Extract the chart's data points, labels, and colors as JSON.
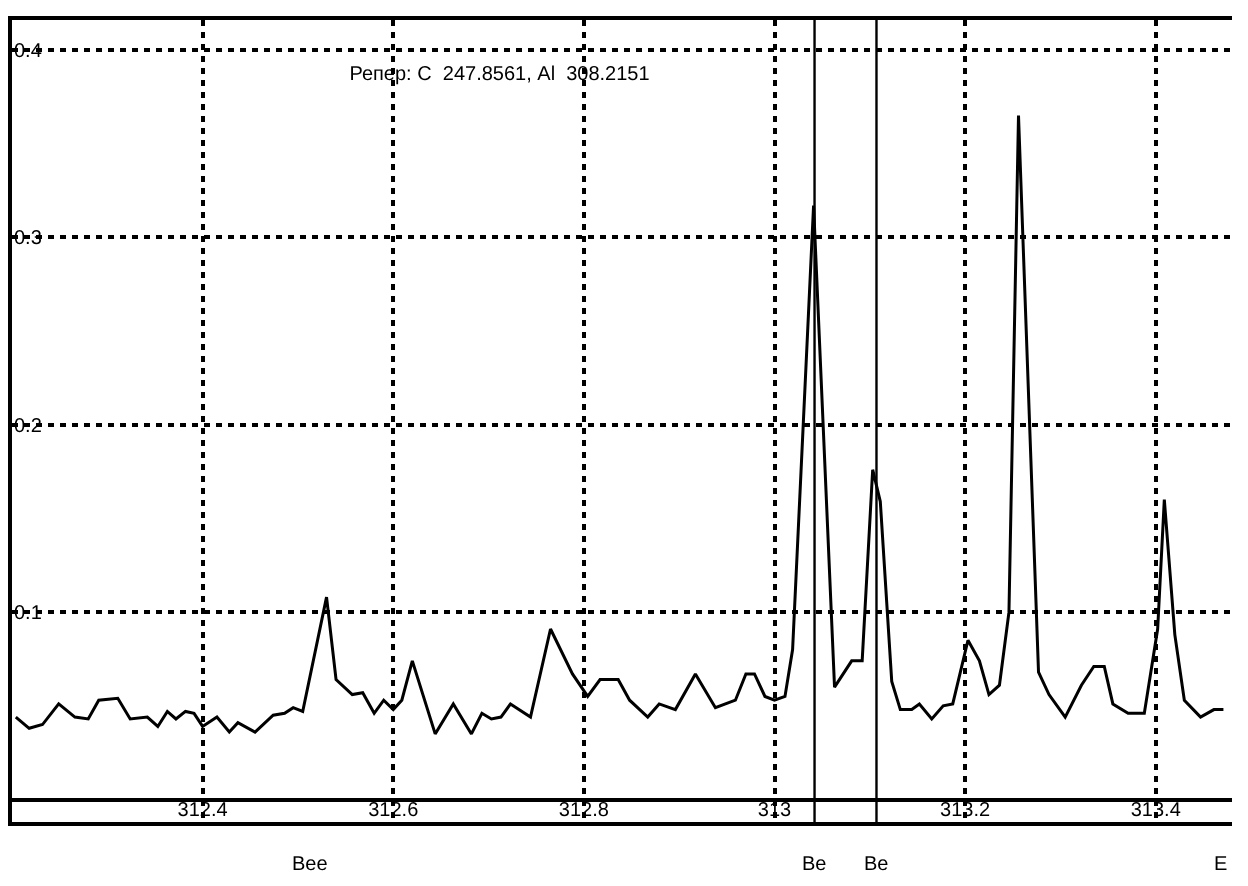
{
  "chart_data": {
    "type": "line",
    "title": "Репер: С  247.8561, Al  308.2151",
    "x": [
      312.204,
      312.218,
      312.232,
      312.249,
      312.266,
      312.28,
      312.291,
      312.311,
      312.324,
      312.342,
      312.353,
      312.363,
      312.372,
      312.382,
      312.391,
      312.4,
      312.415,
      312.428,
      312.437,
      312.455,
      312.474,
      312.486,
      312.495,
      312.505,
      312.53,
      312.54,
      312.557,
      312.568,
      312.58,
      312.59,
      312.6,
      312.609,
      312.62,
      312.644,
      312.663,
      312.682,
      312.693,
      312.703,
      312.713,
      312.723,
      312.744,
      312.765,
      312.788,
      312.804,
      312.817,
      312.836,
      312.848,
      312.867,
      312.879,
      312.896,
      312.917,
      312.938,
      312.959,
      312.97,
      312.979,
      312.99,
      313.0,
      313.011,
      313.019,
      313.041,
      313.063,
      313.081,
      313.092,
      313.103,
      313.111,
      313.123,
      313.132,
      313.144,
      313.152,
      313.165,
      313.177,
      313.187,
      313.203,
      313.215,
      313.225,
      313.236,
      313.246,
      313.256,
      313.277,
      313.288,
      313.305,
      313.322,
      313.335,
      313.346,
      313.355,
      313.371,
      313.388,
      313.402,
      313.409,
      313.42,
      313.43,
      313.447,
      313.461,
      313.471
    ],
    "series": [
      {
        "color": "#000000",
        "values": [
          0.044,
          0.038,
          0.04,
          0.051,
          0.044,
          0.043,
          0.053,
          0.054,
          0.043,
          0.044,
          0.039,
          0.047,
          0.043,
          0.047,
          0.046,
          0.039,
          0.044,
          0.036,
          0.041,
          0.036,
          0.045,
          0.046,
          0.049,
          0.047,
          0.108,
          0.064,
          0.056,
          0.057,
          0.046,
          0.053,
          0.048,
          0.053,
          0.074,
          0.035,
          0.051,
          0.035,
          0.046,
          0.043,
          0.044,
          0.051,
          0.044,
          0.091,
          0.067,
          0.055,
          0.064,
          0.064,
          0.053,
          0.044,
          0.051,
          0.048,
          0.067,
          0.049,
          0.053,
          0.067,
          0.067,
          0.055,
          0.053,
          0.055,
          0.08,
          0.317,
          0.06,
          0.074,
          0.074,
          0.176,
          0.159,
          0.063,
          0.048,
          0.048,
          0.051,
          0.043,
          0.05,
          0.051,
          0.085,
          0.074,
          0.056,
          0.061,
          0.1,
          0.365,
          0.068,
          0.056,
          0.044,
          0.061,
          0.071,
          0.071,
          0.051,
          0.046,
          0.046,
          0.091,
          0.16,
          0.088,
          0.053,
          0.044,
          0.048,
          0.048
        ]
      }
    ],
    "xlim": [
      312.2,
      313.48
    ],
    "xticks": [
      312.4,
      312.6,
      312.8,
      {
        "value": 313,
        "label": "313"
      },
      313.2,
      313.4
    ],
    "ylim": [
      -0.012,
      0.416
    ],
    "yticks": [
      {
        "value": 0,
        "label": null
      },
      0.1,
      0.2,
      0.3,
      0.4
    ],
    "ref_lines": [
      {
        "axis": "x",
        "value": 313.042,
        "label": "Be",
        "color": "#000000",
        "line_style": "solid"
      },
      {
        "axis": "x",
        "value": 313.107,
        "label": "Be",
        "color": "#000000",
        "line_style": "solid"
      }
    ],
    "annotations": [
      "Bee",
      "E"
    ],
    "grid": true,
    "marker": "none",
    "line_style": "solid"
  }
}
